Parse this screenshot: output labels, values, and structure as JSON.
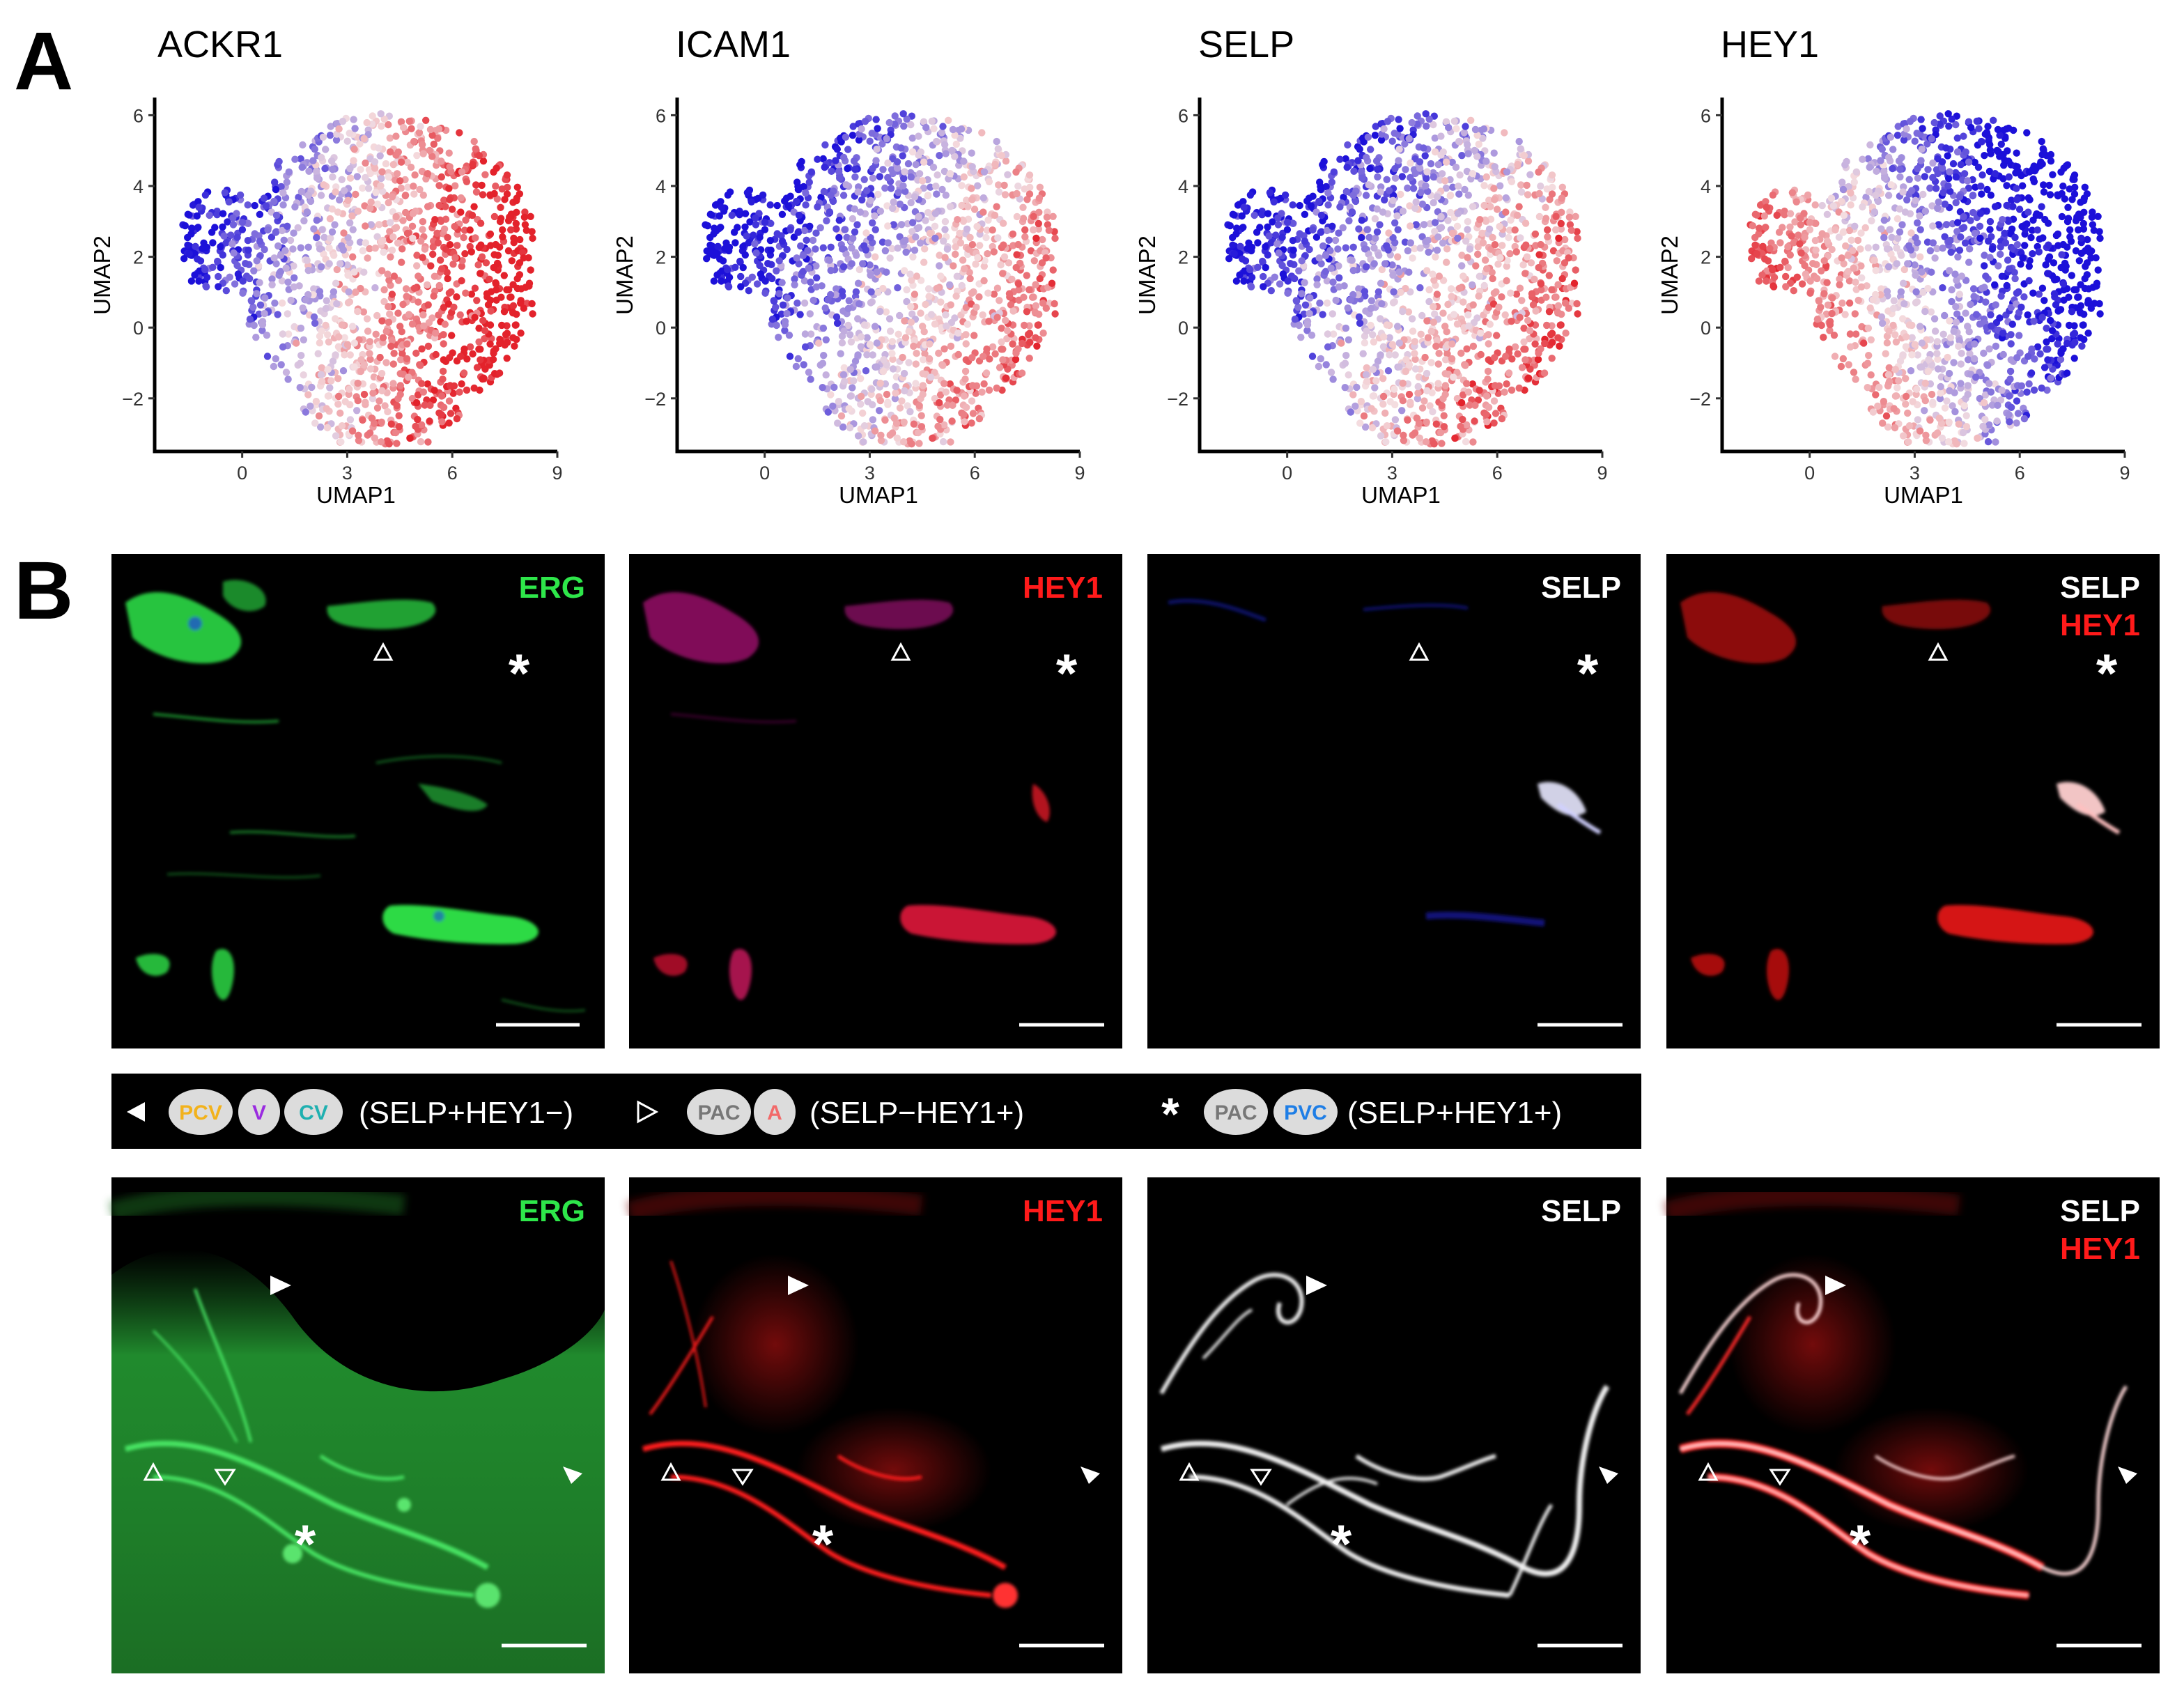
{
  "panel_a": {
    "letter": "A",
    "colors": {
      "low": "#1c10d9",
      "mid": "#f4dde0",
      "high": "#e3222b"
    },
    "xlabel": "UMAP1",
    "ylabel": "UMAP2",
    "x_ticks": [
      "0",
      "3",
      "6",
      "9"
    ],
    "y_ticks": [
      "6",
      "4",
      "2",
      "0",
      "−2"
    ],
    "plots": [
      {
        "gene": "ACKR1",
        "pattern": "left-low"
      },
      {
        "gene": "ICAM1",
        "pattern": "gradient"
      },
      {
        "gene": "SELP",
        "pattern": "gradient-soft"
      },
      {
        "gene": "HEY1",
        "pattern": "left-high"
      }
    ]
  },
  "chart_data": [
    {
      "type": "scatter",
      "title": "ACKR1",
      "xlabel": "UMAP1",
      "ylabel": "UMAP2",
      "xlim": [
        -2.5,
        9
      ],
      "ylim": [
        -3.5,
        6.5
      ],
      "x_ticks": [
        0,
        3,
        6,
        9
      ],
      "y_ticks": [
        -2,
        0,
        2,
        4,
        6
      ],
      "color_scale": [
        "#1c10d9",
        "#f4dde0",
        "#e3222b"
      ]
    },
    {
      "type": "scatter",
      "title": "ICAM1",
      "xlabel": "UMAP1",
      "ylabel": "UMAP2",
      "xlim": [
        -2.5,
        9
      ],
      "ylim": [
        -3.5,
        6.5
      ],
      "x_ticks": [
        0,
        3,
        6,
        9
      ],
      "y_ticks": [
        -2,
        0,
        2,
        4,
        6
      ],
      "color_scale": [
        "#1c10d9",
        "#f4dde0",
        "#e3222b"
      ]
    },
    {
      "type": "scatter",
      "title": "SELP",
      "xlabel": "UMAP1",
      "ylabel": "UMAP2",
      "xlim": [
        -2.5,
        9
      ],
      "ylim": [
        -3.5,
        6.5
      ],
      "x_ticks": [
        0,
        3,
        6,
        9
      ],
      "y_ticks": [
        -2,
        0,
        2,
        4,
        6
      ],
      "color_scale": [
        "#1c10d9",
        "#f4dde0",
        "#e3222b"
      ]
    },
    {
      "type": "scatter",
      "title": "HEY1",
      "xlabel": "UMAP1",
      "ylabel": "UMAP2",
      "xlim": [
        -2.5,
        9
      ],
      "ylim": [
        -3.5,
        6.5
      ],
      "x_ticks": [
        0,
        3,
        6,
        9
      ],
      "y_ticks": [
        -2,
        0,
        2,
        4,
        6
      ],
      "color_scale": [
        "#1c10d9",
        "#f4dde0",
        "#e3222b"
      ]
    }
  ],
  "panel_b": {
    "letter": "B",
    "channel_colors": {
      "erg": "#2ee64a",
      "hey1": "#ff1a1a",
      "selp": "#ffffff"
    },
    "top_row": {
      "panels": [
        {
          "labels": [
            "ERG"
          ],
          "label_colors": [
            "#2ee64a"
          ]
        },
        {
          "labels": [
            "HEY1"
          ],
          "label_colors": [
            "#ff1a1a"
          ]
        },
        {
          "labels": [
            "SELP"
          ],
          "label_colors": [
            "#ffffff"
          ]
        },
        {
          "labels": [
            "SELP",
            "HEY1"
          ],
          "label_colors": [
            "#ffffff",
            "#ff1a1a"
          ]
        }
      ],
      "asterisk": "*"
    },
    "legend": {
      "groups": [
        {
          "marker": "◀",
          "pills": [
            {
              "text": "PCV",
              "color": "#f2b21c"
            },
            {
              "text": "V",
              "color": "#9a2be0"
            },
            {
              "text": "CV",
              "color": "#1fb0b0"
            }
          ],
          "label": "(SELP+HEY1−)"
        },
        {
          "marker": "▷",
          "pills": [
            {
              "text": "PAC",
              "color": "#777777"
            },
            {
              "text": "A",
              "color": "#f26a6a"
            }
          ],
          "label": "(SELP−HEY1+)"
        },
        {
          "marker": "*",
          "pills": [
            {
              "text": "PAC",
              "color": "#777777"
            },
            {
              "text": "PVC",
              "color": "#1e7ee6"
            }
          ],
          "label": "(SELP+HEY1+)"
        }
      ]
    },
    "bottom_row": {
      "panels": [
        {
          "labels": [
            "ERG"
          ],
          "label_colors": [
            "#2ee64a"
          ]
        },
        {
          "labels": [
            "HEY1"
          ],
          "label_colors": [
            "#ff1a1a"
          ]
        },
        {
          "labels": [
            "SELP"
          ],
          "label_colors": [
            "#ffffff"
          ]
        },
        {
          "labels": [
            "SELP",
            "HEY1"
          ],
          "label_colors": [
            "#ffffff",
            "#ff1a1a"
          ]
        }
      ],
      "asterisk": "*"
    }
  }
}
